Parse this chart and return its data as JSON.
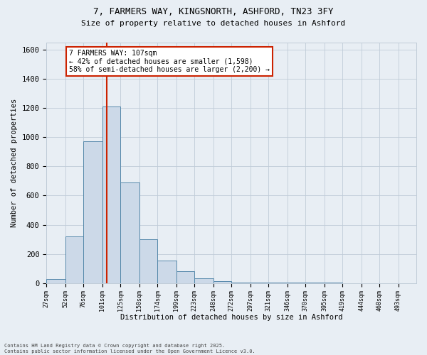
{
  "title_line1": "7, FARMERS WAY, KINGSNORTH, ASHFORD, TN23 3FY",
  "title_line2": "Size of property relative to detached houses in Ashford",
  "xlabel": "Distribution of detached houses by size in Ashford",
  "ylabel": "Number of detached properties",
  "bar_edges": [
    27,
    52,
    76,
    101,
    125,
    150,
    174,
    199,
    223,
    248,
    272,
    297,
    321,
    346,
    370,
    395,
    419,
    444,
    468,
    493,
    517
  ],
  "bar_heights": [
    25,
    320,
    975,
    1210,
    690,
    300,
    155,
    80,
    30,
    15,
    5,
    5,
    2,
    2,
    1,
    1,
    0,
    0,
    0,
    0
  ],
  "bar_color": "#ccd9e8",
  "bar_edgecolor": "#5588aa",
  "grid_color": "#c0ccd8",
  "property_size": 107,
  "vline_color": "#cc2200",
  "annotation_text": "7 FARMERS WAY: 107sqm\n← 42% of detached houses are smaller (1,598)\n58% of semi-detached houses are larger (2,200) →",
  "annotation_box_color": "#ffffff",
  "annotation_box_edgecolor": "#cc2200",
  "ylim": [
    0,
    1650
  ],
  "yticks": [
    0,
    200,
    400,
    600,
    800,
    1000,
    1200,
    1400,
    1600
  ],
  "footer_line1": "Contains HM Land Registry data © Crown copyright and database right 2025.",
  "footer_line2": "Contains public sector information licensed under the Open Government Licence v3.0.",
  "bg_color": "#e8eef4"
}
